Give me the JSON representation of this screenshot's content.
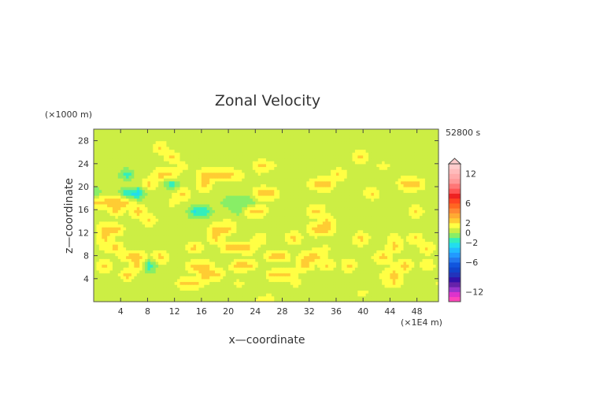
{
  "chart_data": {
    "type": "heatmap",
    "title": "Zonal Velocity",
    "xlabel": "x—coordinate",
    "ylabel": "z—coordinate",
    "x_unit": "(×1E4 m)",
    "y_unit": "(×1000 m)",
    "time_label": "52800 s",
    "xlim": [
      0,
      51.2
    ],
    "ylim": [
      0,
      30
    ],
    "x_ticks": [
      4,
      8,
      12,
      16,
      20,
      24,
      28,
      32,
      36,
      40,
      44,
      48
    ],
    "y_ticks": [
      4,
      8,
      12,
      16,
      20,
      24,
      28
    ],
    "colorbar": {
      "levels": [
        -14,
        -13,
        -12,
        -11,
        -10,
        -9,
        -8,
        -7,
        -6,
        -5,
        -4,
        -3,
        -2,
        -1,
        0,
        1,
        2,
        3,
        4,
        5,
        6,
        7,
        8,
        9,
        10,
        11,
        12,
        13,
        14
      ],
      "tick_values": [
        12,
        6,
        2,
        0,
        -2,
        -6,
        -12
      ],
      "tick_labels": [
        "12",
        "6",
        "2",
        "0",
        "−2",
        "−6",
        "−12"
      ],
      "colors": [
        "#ff44bb",
        "#dd33cc",
        "#9933cc",
        "#6622aa",
        "#3311aa",
        "#2233bb",
        "#1144cc",
        "#1155dd",
        "#2277ee",
        "#2299ff",
        "#22bbff",
        "#22ddee",
        "#33eebb",
        "#88ee66",
        "#ccee44",
        "#ffff44",
        "#ffcc33",
        "#ffaa33",
        "#ff8833",
        "#ff6622",
        "#ff4422",
        "#ee2222",
        "#ff5555",
        "#ff7777",
        "#ff9999",
        "#ffaaaa",
        "#ffbbbb",
        "#ffcccc"
      ]
    },
    "field": [
      [
        0.5,
        0.3,
        0.2,
        0.5,
        0.6,
        0.3,
        1.0,
        0.7,
        0.4,
        0.1,
        0.0,
        0.4,
        0.2,
        0.1,
        0.5,
        1.5,
        1.2,
        0.6,
        0.5,
        0.3,
        0.2,
        0.1,
        0.3,
        0.4,
        0.4,
        0.6,
        0.5,
        0.3,
        0.4,
        0.5,
        0.4,
        0.2
      ],
      [
        0.4,
        0.4,
        0.5,
        0.6,
        0.6,
        0.4,
        0.8,
        0.6,
        0.3,
        0.2,
        0.5,
        1.0,
        0.5,
        0.2,
        0.3,
        0.8,
        1.0,
        0.5,
        0.3,
        0.5,
        0.7,
        0.3,
        0.2,
        0.4,
        1.5,
        0.8,
        0.5,
        0.2,
        0.5,
        0.4,
        0.3,
        0.3
      ],
      [
        0.8,
        0.5,
        0.4,
        0.4,
        0.3,
        0.6,
        0.4,
        0.3,
        2.5,
        2.6,
        1.2,
        0.4,
        0.3,
        1.5,
        0.6,
        0.5,
        0.6,
        0.3,
        1.4,
        0.8,
        0.3,
        0.7,
        0.9,
        0.4,
        0.2,
        0.4,
        1.0,
        2.0,
        0.9,
        0.3,
        0.5,
        1.3
      ],
      [
        1.0,
        0.6,
        0.5,
        2.8,
        0.5,
        0.3,
        0.2,
        0.4,
        0.6,
        0.8,
        2.6,
        2.5,
        0.8,
        0.5,
        0.2,
        0.1,
        2.4,
        2.8,
        1.4,
        0.4,
        0.6,
        0.4,
        0.5,
        0.6,
        0.2,
        0.7,
        1.2,
        2.6,
        0.8,
        0.4,
        0.3,
        0.5
      ],
      [
        0.3,
        2.6,
        0.5,
        0.4,
        2.6,
        -2.2,
        0.8,
        0.6,
        0.8,
        2.6,
        2.5,
        0.9,
        0.7,
        2.8,
        2.4,
        0.6,
        0.2,
        0.4,
        0.8,
        2.5,
        0.9,
        2.2,
        0.6,
        2.8,
        0.3,
        0.8,
        0.5,
        1.2,
        2.7,
        0.6,
        2.2,
        0.4
      ],
      [
        0.8,
        0.4,
        0.6,
        2.4,
        2.6,
        0.8,
        2.7,
        0.6,
        0.5,
        0.3,
        0.6,
        0.5,
        0.4,
        0.4,
        0.8,
        0.6,
        2.5,
        2.6,
        0.5,
        2.4,
        2.5,
        0.9,
        0.8,
        0.5,
        0.6,
        1.0,
        2.8,
        0.5,
        0.7,
        0.5,
        0.8,
        0.6
      ],
      [
        0.5,
        1.6,
        2.4,
        0.6,
        0.3,
        0.8,
        0.5,
        0.5,
        0.6,
        2.6,
        0.8,
        0.6,
        2.4,
        2.8,
        2.3,
        0.7,
        0.4,
        0.6,
        0.5,
        0.4,
        0.9,
        1.2,
        0.6,
        0.4,
        1.0,
        0.4,
        0.5,
        2.6,
        0.8,
        0.7,
        2.4,
        0.6
      ],
      [
        0.6,
        2.3,
        0.6,
        0.8,
        0.5,
        0.4,
        0.8,
        0.5,
        0.4,
        0.2,
        0.6,
        2.4,
        0.5,
        0.3,
        0.5,
        2.4,
        0.2,
        0.8,
        2.7,
        0.6,
        0.8,
        0.6,
        0.4,
        0.8,
        2.5,
        0.8,
        0.6,
        1.5,
        0.8,
        2.4,
        0.3,
        0.4
      ],
      [
        0.6,
        2.4,
        2.8,
        0.6,
        0.3,
        0.8,
        0.4,
        0.3,
        0.6,
        0.6,
        0.8,
        2.6,
        2.5,
        0.9,
        0.7,
        0.5,
        0.6,
        0.5,
        0.8,
        0.6,
        2.7,
        2.5,
        0.8,
        0.3,
        0.7,
        0.5,
        0.5,
        0.8,
        0.3,
        0.6,
        0.9,
        0.5
      ],
      [
        0.9,
        0.6,
        0.4,
        0.8,
        0.6,
        2.2,
        0.7,
        0.4,
        0.3,
        0.5,
        0.4,
        0.6,
        1.2,
        0.8,
        0.6,
        0.6,
        0.5,
        0.4,
        0.6,
        0.9,
        0.6,
        2.4,
        0.4,
        0.6,
        0.8,
        0.8,
        0.6,
        0.4,
        0.7,
        0.6,
        0.4,
        0.8
      ],
      [
        0.7,
        0.5,
        2.4,
        0.8,
        2.9,
        0.6,
        0.6,
        0.8,
        0.9,
        -2.1,
        -1.9,
        0.5,
        0.6,
        -0.8,
        2.1,
        2.4,
        0.5,
        0.6,
        0.8,
        0.8,
        2.6,
        0.6,
        0.4,
        0.7,
        0.8,
        0.8,
        0.6,
        0.8,
        0.6,
        2.4,
        0.4,
        0.7
      ],
      [
        2.6,
        2.5,
        2.8,
        2.6,
        0.5,
        0.7,
        0.6,
        1.2,
        0.9,
        0.8,
        0.8,
        0.6,
        -0.9,
        -0.8,
        -1.0,
        0.8,
        0.6,
        0.6,
        0.9,
        0.8,
        0.6,
        1.0,
        0.6,
        0.8,
        0.4,
        0.7,
        0.8,
        0.6,
        0.7,
        0.5,
        0.6,
        0.6
      ],
      [
        -1.1,
        0.4,
        0.6,
        -2.4,
        -2.7,
        0.5,
        0.8,
        0.8,
        2.4,
        0.7,
        0.9,
        0.6,
        0.6,
        0.5,
        0.7,
        2.6,
        2.7,
        0.6,
        0.7,
        0.5,
        0.6,
        0.8,
        0.4,
        0.6,
        0.6,
        2.3,
        0.6,
        0.5,
        0.6,
        0.7,
        0.5,
        0.6
      ],
      [
        0.4,
        0.7,
        0.6,
        0.8,
        0.6,
        2.5,
        0.6,
        -2.1,
        0.6,
        0.6,
        2.7,
        0.5,
        0.6,
        0.8,
        0.5,
        0.7,
        0.6,
        0.4,
        0.7,
        0.6,
        2.7,
        2.8,
        0.6,
        0.8,
        0.5,
        0.7,
        0.6,
        0.5,
        2.9,
        2.7,
        0.8,
        0.6
      ],
      [
        0.6,
        0.8,
        0.5,
        -1.8,
        0.6,
        0.7,
        2.6,
        2.4,
        0.5,
        0.8,
        2.5,
        2.6,
        2.8,
        1.5,
        0.6,
        0.9,
        0.5,
        0.6,
        0.6,
        0.8,
        0.5,
        0.6,
        2.4,
        0.6,
        0.6,
        0.4,
        0.6,
        0.8,
        0.7,
        0.5,
        0.6,
        0.4
      ],
      [
        0.5,
        0.6,
        0.7,
        0.4,
        0.6,
        0.5,
        0.7,
        0.5,
        1.6,
        0.5,
        0.8,
        0.6,
        0.6,
        0.6,
        0.5,
        2.6,
        1.4,
        0.6,
        0.5,
        0.6,
        0.8,
        0.7,
        0.6,
        0.7,
        0.7,
        0.6,
        1.4,
        0.7,
        0.5,
        0.6,
        0.7,
        0.5
      ],
      [
        0.6,
        0.4,
        0.6,
        0.8,
        0.6,
        0.4,
        0.5,
        2.3,
        0.5,
        0.7,
        0.6,
        0.5,
        0.6,
        0.6,
        0.7,
        0.5,
        0.6,
        0.8,
        0.6,
        0.7,
        0.6,
        0.8,
        0.5,
        0.6,
        2.4,
        0.6,
        0.5,
        0.6,
        0.8,
        0.6,
        0.4,
        0.6
      ],
      [
        0.5,
        0.7,
        0.6,
        0.5,
        0.7,
        0.6,
        2.3,
        0.5,
        0.8,
        0.6,
        0.5,
        0.6,
        0.7,
        0.6,
        0.5,
        0.8,
        0.5,
        0.6,
        0.5,
        0.6,
        0.7,
        0.5,
        0.8,
        0.6,
        0.7,
        0.5,
        0.6,
        0.8,
        0.6,
        0.5,
        0.7,
        0.8
      ],
      [
        0.7,
        0.5,
        0.6,
        0.7,
        0.5,
        0.8,
        0.6,
        0.7,
        0.5,
        0.6,
        0.7,
        0.8,
        0.6,
        0.5,
        0.7,
        0.6,
        0.7,
        0.5,
        0.6,
        0.7,
        0.6,
        0.7,
        0.5,
        0.6,
        0.7,
        0.8,
        0.6,
        0.7,
        0.5,
        0.6,
        0.6,
        0.6
      ],
      [
        0.6,
        0.6,
        0.7,
        0.6,
        0.6,
        0.7,
        0.6,
        0.6,
        0.7,
        0.6,
        0.6,
        0.7,
        0.6,
        0.6,
        0.7,
        0.6,
        0.6,
        0.7,
        0.6,
        0.6,
        0.7,
        0.6,
        0.6,
        0.7,
        0.6,
        0.6,
        0.7,
        0.6,
        0.6,
        0.7,
        0.6,
        0.6
      ]
    ]
  }
}
